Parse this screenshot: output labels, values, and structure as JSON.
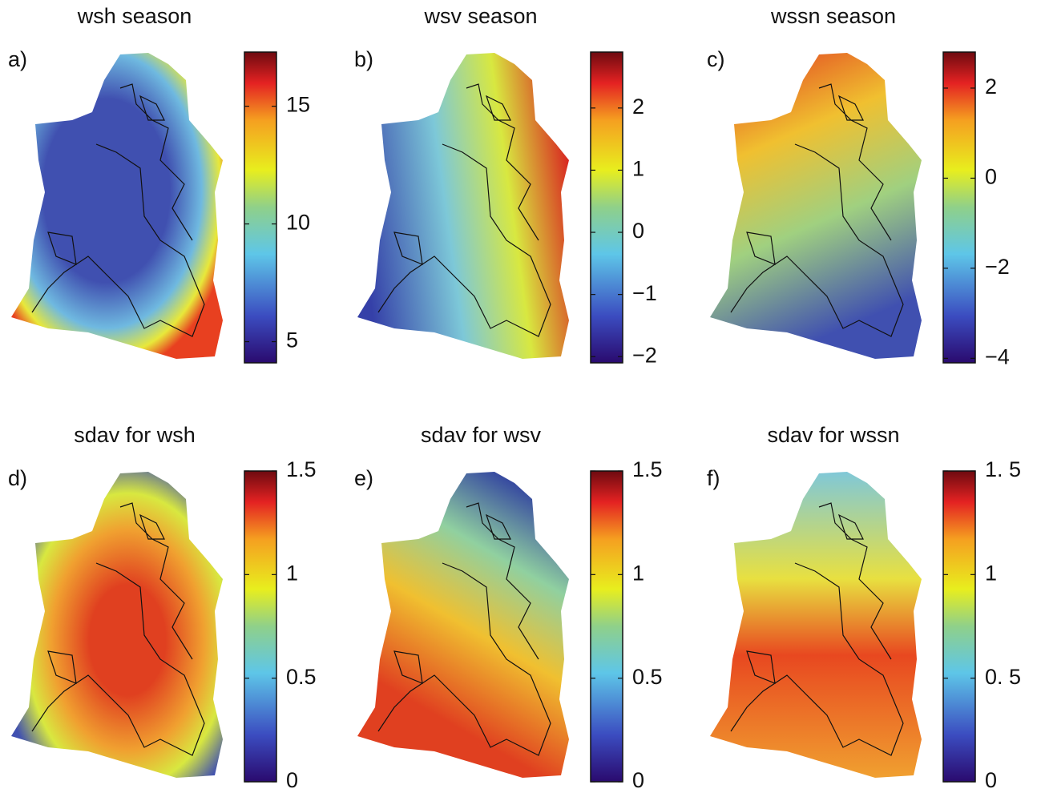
{
  "panels": [
    {
      "title": "wsh season",
      "label": "a)",
      "colorbar": {
        "lim": [
          4.1,
          17.3
        ],
        "ticks": [
          5,
          10,
          15
        ]
      }
    },
    {
      "title": "wsv season",
      "label": "b)",
      "colorbar": {
        "lim": [
          -2.1,
          2.9
        ],
        "ticks": [
          {
            "value": -2,
            "label": "−2"
          },
          {
            "value": -1,
            "label": "−1"
          },
          0,
          1,
          2
        ]
      }
    },
    {
      "title": "wssn season",
      "label": "c)",
      "colorbar": {
        "lim": [
          -4.1,
          2.8
        ],
        "ticks": [
          {
            "value": -4,
            "label": "−4"
          },
          {
            "value": -2,
            "label": "−2"
          },
          0,
          2
        ]
      }
    },
    {
      "title": "sdav for wsh",
      "label": "d)",
      "colorbar": {
        "lim": [
          0,
          1.5
        ],
        "ticks": [
          0,
          0.5,
          1,
          1.5
        ]
      }
    },
    {
      "title": "sdav for wsv",
      "label": "e)",
      "colorbar": {
        "lim": [
          0,
          1.5
        ],
        "ticks": [
          0,
          0.5,
          1,
          1.5
        ]
      }
    },
    {
      "title": "sdav for wssn",
      "label": "f)",
      "colorbar": {
        "lim": [
          0,
          1.5
        ],
        "ticks": [
          0,
          {
            "value": 0.5,
            "label": "0. 5"
          },
          1,
          {
            "value": 1.5,
            "label": "1. 5"
          }
        ]
      }
    }
  ]
}
